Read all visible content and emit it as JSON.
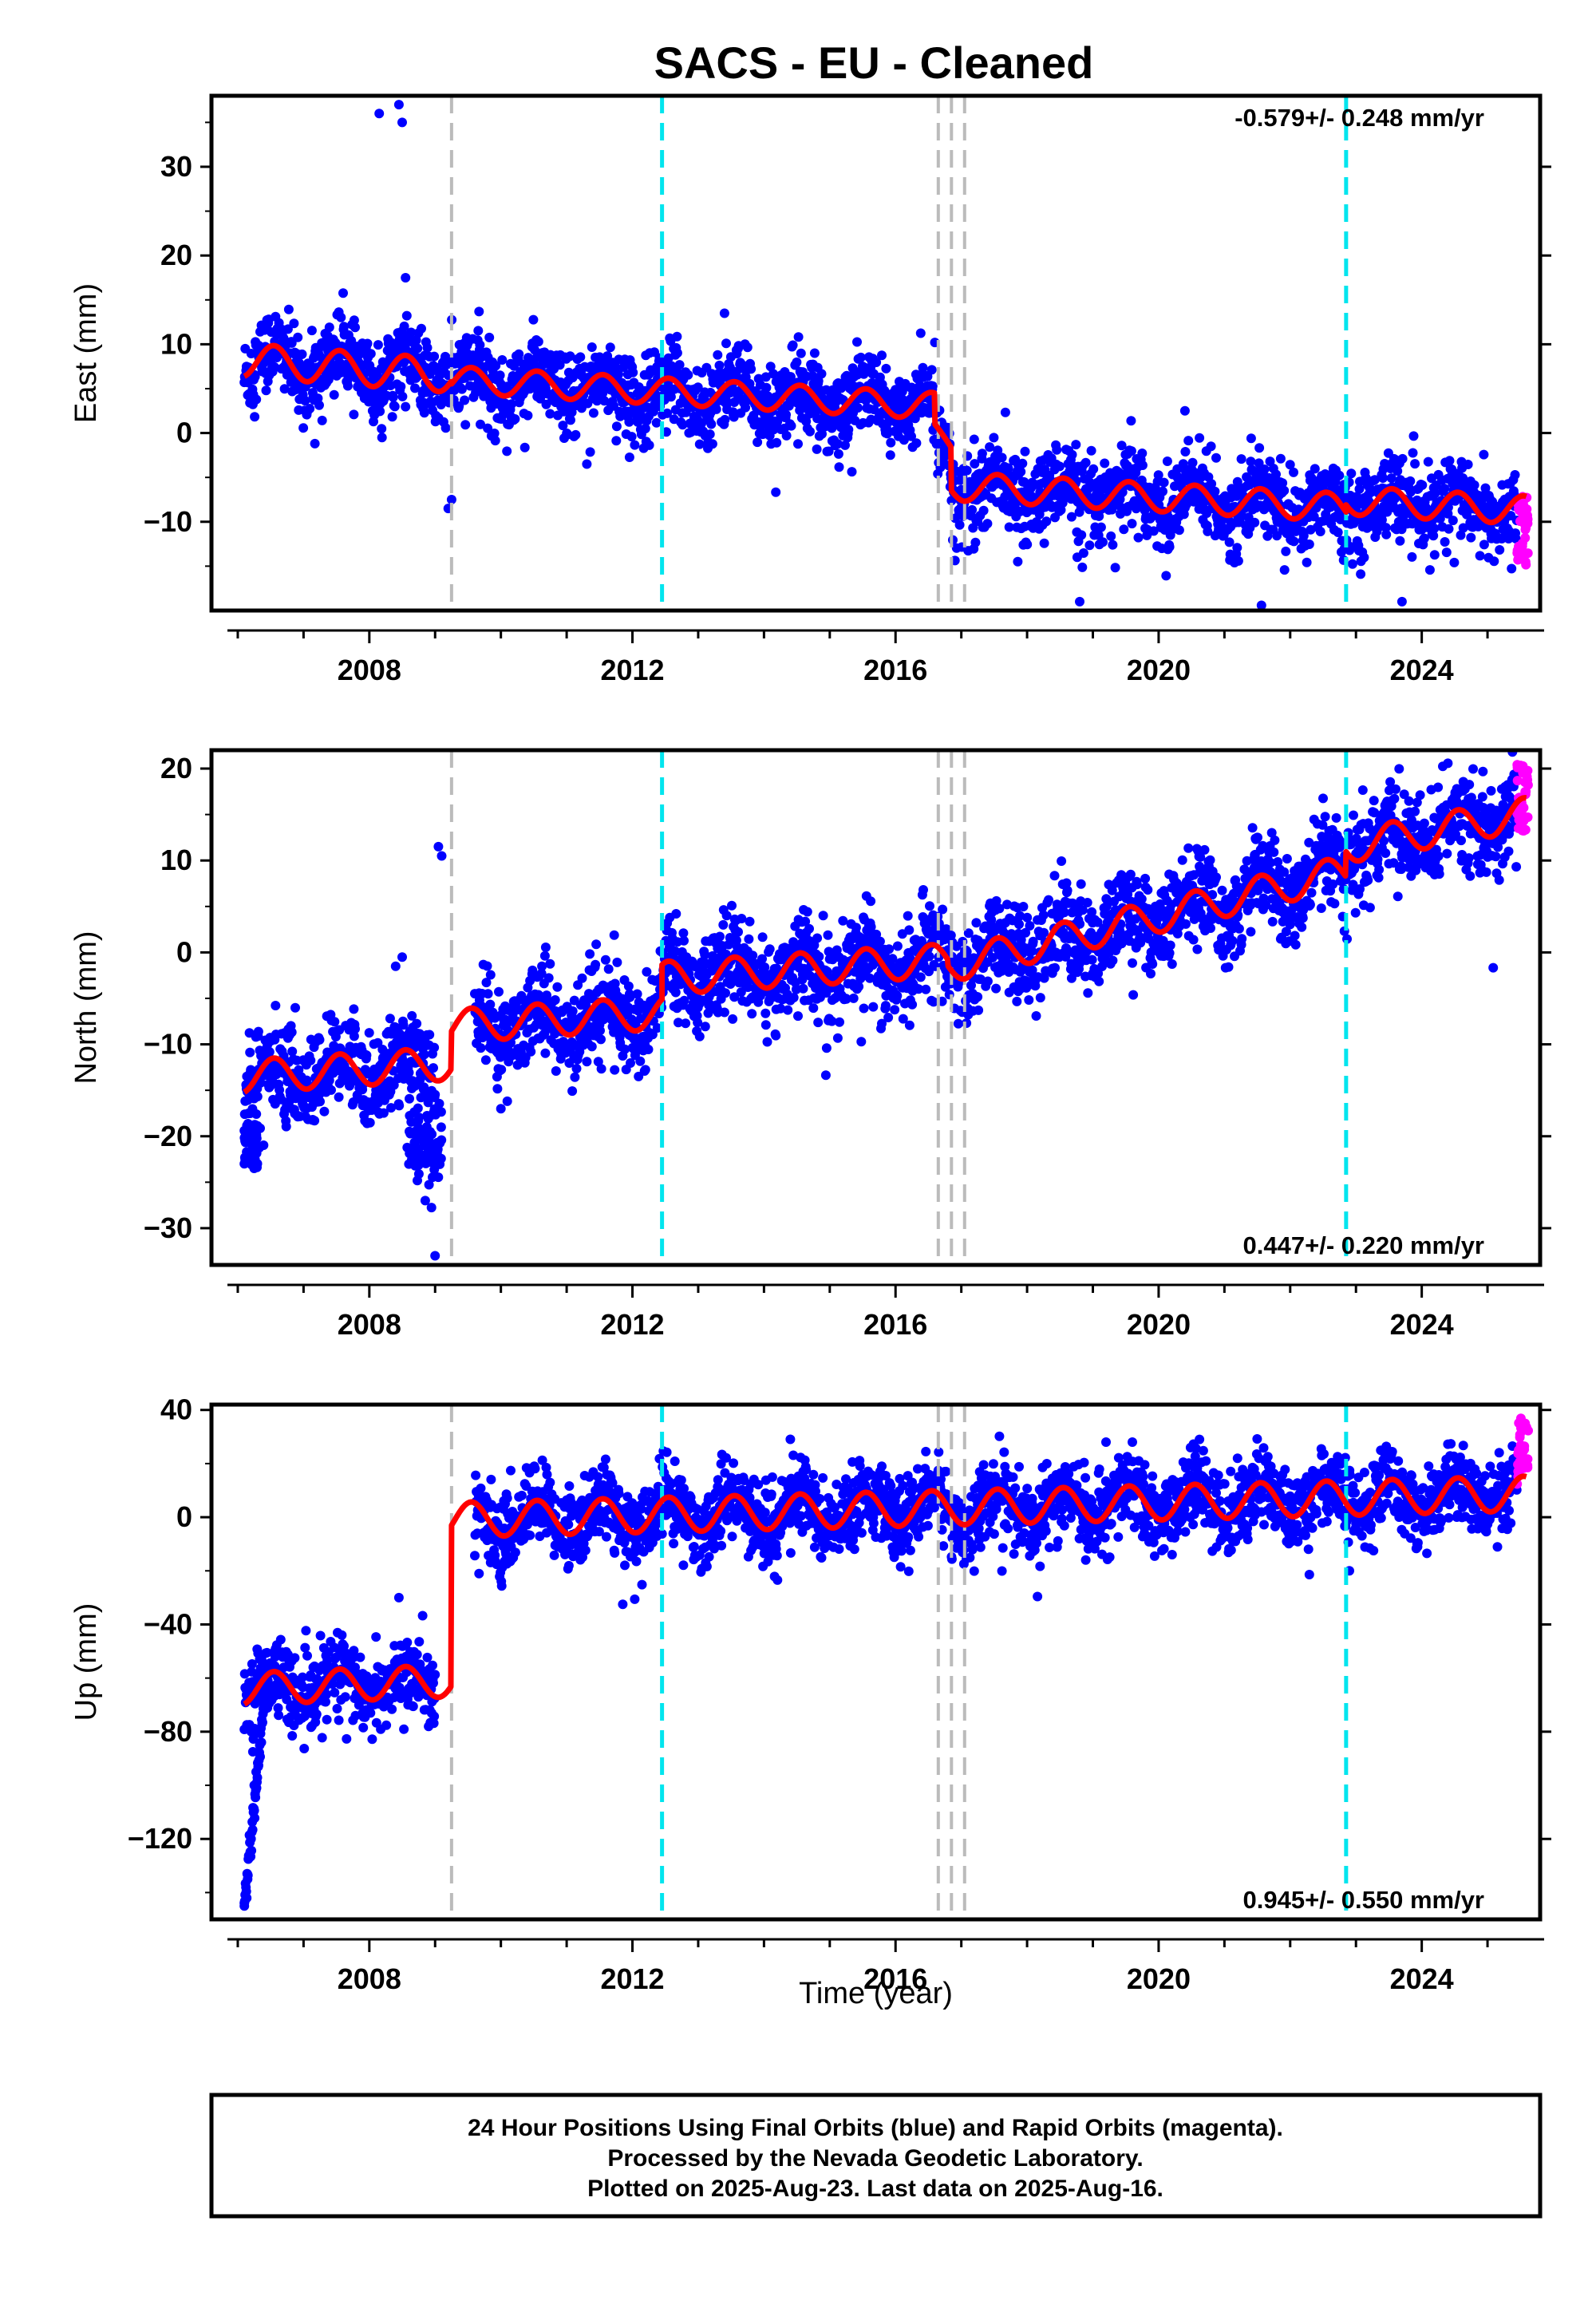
{
  "title": "SACS  - EU - Cleaned",
  "colors": {
    "final_orbits": "#0000ff",
    "rapid_orbits": "#ff00ff",
    "model": "#ff0000",
    "equipment_change": "#bbbbbb",
    "earthquake": "#00e5ee"
  },
  "chart_data": [
    {
      "type": "scatter",
      "name": "east",
      "ylabel": "East (mm)",
      "xlabel": "",
      "xlim": [
        2005.6,
        2025.8
      ],
      "ylim": [
        -20,
        38
      ],
      "yticks": [
        30,
        20,
        10,
        0,
        -10
      ],
      "xticks": [
        2008,
        2012,
        2016,
        2020,
        2024
      ],
      "rate_label": "-0.579+/- 0.248 mm/yr",
      "rate_label_position": "top-right",
      "vertical_lines": {
        "equipment": [
          2009.25,
          2016.65,
          2016.85,
          2017.05
        ],
        "earthquake": [
          2012.45,
          2022.85
        ]
      },
      "model": {
        "segments": [
          {
            "x0": 2006.1,
            "x1": 2009.25,
            "offset": 8.2,
            "rate": -0.55,
            "amp": 1.9
          },
          {
            "x0": 2009.25,
            "x1": 2016.6,
            "offset": 6.0,
            "rate": -0.4,
            "amp": 1.5
          },
          {
            "x0": 2016.6,
            "x1": 2016.85,
            "offset": 0.5,
            "rate": -8,
            "amp": 0.5
          },
          {
            "x0": 2016.85,
            "x1": 2022.85,
            "offset": -6.0,
            "rate": -0.4,
            "amp": 1.6
          },
          {
            "x0": 2022.85,
            "x1": 2025.6,
            "offset": -7.6,
            "rate": -0.4,
            "amp": 1.6
          }
        ]
      },
      "outliers": [
        [
          2008.15,
          36
        ],
        [
          2008.45,
          37
        ],
        [
          2008.5,
          35
        ],
        [
          2008.55,
          17.5
        ],
        [
          2009.2,
          -8.5
        ],
        [
          2009.25,
          -7.5
        ],
        [
          2018.8,
          -19
        ],
        [
          2023.7,
          -19
        ],
        [
          2020.4,
          2.5
        ],
        [
          2013.4,
          13.5
        ]
      ],
      "rapid_points": {
        "x0": 2025.45,
        "x1": 2025.62,
        "ymin": -15,
        "ymax": -7
      }
    },
    {
      "type": "scatter",
      "name": "north",
      "ylabel": "North (mm)",
      "xlabel": "",
      "xlim": [
        2005.6,
        2025.8
      ],
      "ylim": [
        -34,
        22
      ],
      "yticks": [
        20,
        10,
        0,
        -10,
        -20,
        -30
      ],
      "xticks": [
        2008,
        2012,
        2016,
        2020,
        2024
      ],
      "rate_label": "0.447+/- 0.220 mm/yr",
      "rate_label_position": "bottom-right",
      "vertical_lines": {
        "equipment": [
          2009.25,
          2016.65,
          2016.85,
          2017.05
        ],
        "earthquake": [
          2012.45,
          2022.85
        ]
      },
      "model": {
        "segments": [
          {
            "x0": 2006.1,
            "x1": 2009.25,
            "offset": -13.5,
            "rate": 0.45,
            "amp": 1.8
          },
          {
            "x0": 2009.25,
            "x1": 2012.45,
            "offset": -8.0,
            "rate": 0.45,
            "amp": 1.8
          },
          {
            "x0": 2012.45,
            "x1": 2016.8,
            "offset": -2.8,
            "rate": 0.45,
            "amp": 1.8
          },
          {
            "x0": 2016.8,
            "x1": 2022.85,
            "offset": -1.5,
            "rate": 1.7,
            "amp": 1.8
          },
          {
            "x0": 2022.85,
            "x1": 2025.6,
            "offset": 11.5,
            "rate": 1.3,
            "amp": 1.8
          }
        ]
      },
      "outliers": [
        [
          2009.05,
          11.5
        ],
        [
          2009.1,
          10.5
        ],
        [
          2009.0,
          -33
        ],
        [
          2008.5,
          -0.5
        ],
        [
          2008.4,
          -1.5
        ],
        [
          2006.1,
          -23
        ],
        [
          2008.85,
          -27
        ],
        [
          2010.0,
          -17
        ]
      ],
      "rapid_points": {
        "x0": 2025.45,
        "x1": 2025.62,
        "ymin": 13,
        "ymax": 20.5
      }
    },
    {
      "type": "scatter",
      "name": "up",
      "ylabel": "Up (mm)",
      "xlabel": "Time (year)",
      "xlim": [
        2005.6,
        2025.8
      ],
      "ylim": [
        -150,
        42
      ],
      "yticks": [
        40,
        0,
        -40,
        -80,
        -120
      ],
      "xticks": [
        2008,
        2012,
        2016,
        2020,
        2024
      ],
      "rate_label": "0.945+/- 0.550 mm/yr",
      "rate_label_position": "bottom-right",
      "vertical_lines": {
        "equipment": [
          2009.25,
          2016.65,
          2016.85,
          2017.05
        ],
        "earthquake": [
          2012.45,
          2022.85
        ]
      },
      "model": {
        "segments": [
          {
            "x0": 2006.1,
            "x1": 2009.25,
            "offset": -64,
            "rate": 0.95,
            "amp": 6
          },
          {
            "x0": 2009.25,
            "x1": 2025.6,
            "offset": -1,
            "rate": 0.6,
            "amp": 6.5
          }
        ]
      },
      "outliers": [
        [
          2006.1,
          -145
        ],
        [
          2006.15,
          -135
        ],
        [
          2006.2,
          -120
        ],
        [
          2006.25,
          -100
        ],
        [
          2008.45,
          -30
        ],
        [
          2019.2,
          28
        ],
        [
          2019.6,
          28
        ],
        [
          2022.9,
          -20
        ]
      ],
      "rapid_points": {
        "x0": 2025.45,
        "x1": 2025.62,
        "ymin": 12,
        "ymax": 38
      }
    }
  ],
  "footer": {
    "line1": "24 Hour Positions Using Final Orbits (blue) and Rapid Orbits (magenta).",
    "line2": "Processed by the Nevada Geodetic Laboratory.",
    "line3": "Plotted on 2025-Aug-23. Last data on 2025-Aug-16."
  }
}
